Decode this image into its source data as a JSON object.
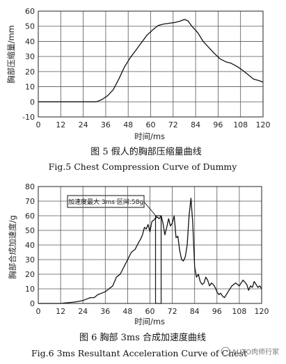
{
  "chart_data": [
    {
      "type": "line",
      "xlabel": "时间/ms",
      "ylabel": "胸部压缩量/mm",
      "xlim": [
        0,
        120
      ],
      "ylim": [
        -10,
        60
      ],
      "xticks": [
        0,
        12,
        24,
        36,
        48,
        60,
        72,
        84,
        96,
        108,
        120
      ],
      "yticks": [
        -10,
        0,
        10,
        20,
        30,
        40,
        50,
        60
      ],
      "grid": true,
      "caption_cn": "图 5  假人的胸部压缩量曲线",
      "caption_en": "Fig.5  Chest Compression Curve of Dummy",
      "series": [
        {
          "x": [
            0,
            31,
            34,
            37,
            40,
            43,
            46,
            49,
            52,
            55,
            58,
            61,
            64,
            67,
            70,
            73,
            76,
            78,
            79,
            80,
            82,
            85,
            88,
            91,
            94,
            97,
            100,
            103,
            106,
            109,
            112,
            115,
            118,
            120
          ],
          "y": [
            0,
            0,
            1.5,
            4,
            8,
            15,
            23,
            29,
            34,
            39,
            44,
            47.5,
            50.5,
            51.5,
            52,
            52.5,
            53.5,
            54.5,
            54,
            53.5,
            50,
            46,
            40,
            36,
            32,
            28.5,
            26.5,
            25.5,
            23.5,
            21,
            18,
            15,
            14,
            13
          ]
        }
      ]
    },
    {
      "type": "line",
      "xlabel": "时间/ms",
      "ylabel": "胸部合成加速度/g",
      "xlim": [
        0,
        120
      ],
      "ylim": [
        0,
        80
      ],
      "xticks": [
        0,
        12,
        24,
        36,
        48,
        60,
        72,
        84,
        96,
        108,
        120
      ],
      "yticks": [
        0,
        10,
        20,
        30,
        40,
        50,
        60,
        70,
        80
      ],
      "grid": true,
      "annotation": "加速度最大 3ms 区间:58g",
      "window_x": [
        63,
        66
      ],
      "caption_cn": "图 6  胸部 3ms 合成加速度曲线",
      "caption_en": "Fig.6  3ms Resultant Acceleration Curve of Chest",
      "series": [
        {
          "x": [
            0,
            4,
            8,
            12,
            16,
            20,
            22,
            24,
            26,
            28,
            30,
            32,
            34,
            36,
            38,
            40,
            42,
            44,
            46,
            48,
            50,
            52,
            54,
            55,
            56,
            57,
            58,
            59,
            60,
            61,
            62,
            63,
            64,
            65,
            66,
            67,
            68,
            69,
            70,
            71,
            72,
            73,
            74,
            75,
            76,
            77,
            78,
            79,
            80,
            81,
            82,
            83,
            84,
            85,
            86,
            87,
            88,
            89,
            90,
            91,
            92,
            93,
            94,
            95,
            96,
            97,
            98,
            99,
            100,
            102,
            104,
            106,
            108,
            110,
            112,
            113,
            114,
            115,
            116,
            117,
            118,
            119,
            120
          ],
          "y": [
            0,
            0,
            0,
            0,
            0.5,
            1,
            1.5,
            2,
            3,
            4,
            4,
            6,
            7,
            8,
            10,
            12,
            18,
            20,
            25,
            30,
            35,
            37,
            42,
            44,
            47,
            52,
            51,
            54,
            49,
            56,
            57,
            58.5,
            59,
            58,
            60,
            55,
            47,
            52,
            58,
            53,
            55,
            60,
            45,
            46,
            36,
            30,
            29,
            32,
            40,
            60,
            72,
            55,
            25,
            18,
            20,
            15,
            13,
            14,
            18,
            16,
            12,
            14,
            13,
            11,
            8,
            6,
            7,
            5,
            4,
            8,
            12,
            14,
            12,
            16,
            13,
            9,
            12,
            11,
            15,
            13,
            11,
            12,
            10
          ]
        }
      ]
    }
  ],
  "watermark": "AUTO肉师行家",
  "colors": {
    "line": "#111111",
    "grid": "#555555",
    "watermark": "#888888"
  }
}
